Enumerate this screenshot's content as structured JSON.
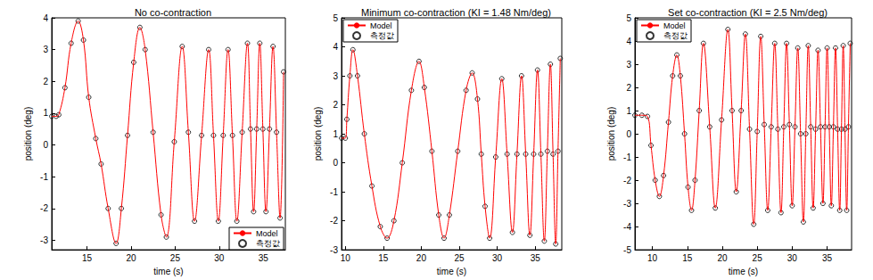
{
  "chart_data": [
    {
      "type": "line",
      "title": "No co-contraction",
      "x_label": "time (s)",
      "y_label": "position (deg)",
      "xlim": [
        11,
        37.5
      ],
      "ylim": [
        -3.3,
        4
      ],
      "xticks": [
        15,
        20,
        25,
        30,
        35
      ],
      "yticks": [
        -3,
        -2,
        -1,
        0,
        1,
        2,
        3,
        4
      ],
      "grid": false,
      "legend": "lower right",
      "x": [
        11.0,
        11.5,
        11.8,
        12.5,
        13.2,
        14.0,
        14.6,
        15.2,
        16.0,
        16.6,
        17.4,
        18.3,
        18.9,
        19.6,
        20.3,
        21.0,
        21.6,
        22.5,
        23.4,
        24.0,
        24.9,
        25.8,
        26.5,
        27.2,
        28.0,
        28.8,
        29.35,
        29.9,
        30.45,
        31.0,
        31.5,
        32.0,
        32.6,
        33.2,
        33.55,
        33.9,
        34.25,
        34.6,
        34.95,
        35.3,
        35.7,
        36.1,
        36.5,
        36.9,
        37.3
      ],
      "series": [
        {
          "name": "Model",
          "type": "line",
          "color": "#ff0000",
          "line_style": "solid",
          "values": [
            0.9,
            0.9,
            0.95,
            1.8,
            3.2,
            3.9,
            3.3,
            1.5,
            0.2,
            -0.6,
            -2.0,
            -3.1,
            -2.0,
            0.3,
            2.6,
            3.7,
            3.0,
            0.4,
            -2.2,
            -2.9,
            0.1,
            3.1,
            0.4,
            -2.4,
            0.3,
            3.0,
            0.3,
            -2.4,
            0.3,
            3.0,
            0.3,
            -2.4,
            0.4,
            3.2,
            0.5,
            -2.1,
            0.5,
            3.2,
            0.5,
            -2.1,
            0.5,
            3.1,
            0.4,
            -2.3,
            2.3
          ]
        },
        {
          "name": "측정값",
          "type": "scatter",
          "color": "#000000",
          "marker": "circle",
          "values": [
            0.9,
            0.9,
            0.95,
            1.8,
            3.2,
            3.9,
            3.3,
            1.5,
            0.2,
            -0.6,
            -2.0,
            -3.1,
            -2.0,
            0.3,
            2.6,
            3.7,
            3.0,
            0.4,
            -2.2,
            -2.9,
            0.1,
            3.1,
            0.4,
            -2.4,
            0.3,
            3.0,
            0.3,
            -2.4,
            0.3,
            3.0,
            0.3,
            -2.4,
            0.4,
            3.2,
            0.5,
            -2.1,
            0.5,
            3.2,
            0.5,
            -2.1,
            0.5,
            3.1,
            0.4,
            -2.3,
            2.3
          ]
        }
      ]
    },
    {
      "type": "line",
      "title": "Minimum co-contraction (KI = 1.48 Nm/deg)",
      "x_label": "time (s)",
      "y_label": "position (deg)",
      "xlim": [
        9.5,
        38.5
      ],
      "ylim": [
        -3,
        5
      ],
      "xticks": [
        10,
        15,
        20,
        25,
        30,
        35
      ],
      "yticks": [
        -3,
        -2,
        -1,
        0,
        1,
        2,
        3,
        4,
        5
      ],
      "grid": false,
      "legend": "upper left",
      "x": [
        9.5,
        10.0,
        10.2,
        10.6,
        11.0,
        11.6,
        12.5,
        13.5,
        14.6,
        15.5,
        16.4,
        17.5,
        18.7,
        19.7,
        20.4,
        21.4,
        22.3,
        23.0,
        23.7,
        24.8,
        25.9,
        26.7,
        27.4,
        27.9,
        28.4,
        29.0,
        29.8,
        30.6,
        31.3,
        32.0,
        32.6,
        33.2,
        33.75,
        34.3,
        34.8,
        35.3,
        35.75,
        36.2,
        36.6,
        37.0,
        37.35,
        37.7,
        38.0,
        38.3
      ],
      "series": [
        {
          "name": "Model",
          "type": "line",
          "color": "#ff0000",
          "line_style": "solid",
          "values": [
            0.85,
            0.85,
            1.5,
            3.0,
            3.9,
            3.0,
            1.0,
            -0.8,
            -2.2,
            -2.6,
            -2.0,
            0.0,
            2.5,
            3.5,
            2.6,
            0.4,
            -1.8,
            -2.6,
            -1.8,
            0.4,
            2.5,
            3.1,
            2.2,
            0.3,
            -1.5,
            -2.6,
            0.2,
            2.9,
            0.3,
            -2.4,
            0.3,
            3.0,
            0.3,
            -2.5,
            0.3,
            3.2,
            0.3,
            -2.7,
            0.4,
            3.4,
            0.3,
            -2.8,
            0.4,
            3.6
          ]
        },
        {
          "name": "측정값",
          "type": "scatter",
          "color": "#000000",
          "marker": "circle",
          "values": [
            0.85,
            0.85,
            1.5,
            3.0,
            3.9,
            3.0,
            1.0,
            -0.8,
            -2.2,
            -2.6,
            -2.0,
            0.0,
            2.5,
            3.5,
            2.6,
            0.4,
            -1.8,
            -2.6,
            -1.8,
            0.4,
            2.5,
            3.1,
            2.2,
            0.3,
            -1.5,
            -2.6,
            0.2,
            2.9,
            0.3,
            -2.4,
            0.3,
            3.0,
            0.3,
            -2.5,
            0.3,
            3.2,
            0.3,
            -2.7,
            0.4,
            3.4,
            0.3,
            -2.8,
            0.4,
            3.6
          ]
        }
      ]
    },
    {
      "type": "line",
      "title": "Set co-contraction (KI = 2.5 Nm/deg)",
      "x_label": "time (s)",
      "y_label": "position (deg)",
      "xlim": [
        7.5,
        38.5
      ],
      "ylim": [
        -5,
        5
      ],
      "xticks": [
        10,
        15,
        20,
        25,
        30,
        35
      ],
      "yticks": [
        -5,
        -4,
        -3,
        -2,
        -1,
        0,
        1,
        2,
        3,
        4,
        5
      ],
      "grid": false,
      "legend": "upper left",
      "x": [
        7.5,
        8.5,
        9.3,
        9.8,
        10.4,
        11.0,
        11.6,
        12.3,
        12.9,
        13.5,
        14.0,
        14.6,
        15.1,
        15.6,
        16.1,
        16.7,
        17.3,
        18.2,
        19.0,
        19.9,
        20.8,
        21.4,
        22.0,
        22.7,
        23.3,
        23.9,
        24.5,
        25.0,
        25.5,
        26.0,
        26.5,
        27.0,
        27.5,
        27.95,
        28.4,
        28.8,
        29.2,
        29.6,
        30.0,
        30.4,
        30.8,
        31.2,
        31.6,
        31.95,
        32.3,
        32.65,
        33.0,
        33.35,
        33.7,
        34.05,
        34.4,
        34.7,
        35.0,
        35.3,
        35.6,
        35.9,
        36.2,
        36.5,
        36.8,
        37.05,
        37.3,
        37.55,
        37.8,
        38.05,
        38.3
      ],
      "series": [
        {
          "name": "Model",
          "type": "line",
          "color": "#ff0000",
          "line_style": "solid",
          "values": [
            0.8,
            0.8,
            0.75,
            -0.5,
            -2.0,
            -2.7,
            -1.8,
            0.5,
            2.5,
            3.4,
            2.5,
            0.0,
            -2.3,
            -3.3,
            -2.0,
            1.0,
            3.9,
            0.3,
            -3.2,
            0.6,
            4.5,
            1.0,
            -2.5,
            1.0,
            4.3,
            0.2,
            -3.9,
            0.1,
            4.2,
            0.4,
            -3.3,
            0.3,
            3.9,
            0.2,
            -3.4,
            0.3,
            3.9,
            0.4,
            -3.1,
            0.3,
            3.7,
            0.0,
            -3.8,
            0.0,
            3.8,
            0.3,
            -3.2,
            0.2,
            3.6,
            0.3,
            -3.0,
            0.3,
            3.7,
            0.3,
            -3.1,
            0.3,
            3.7,
            0.2,
            -3.3,
            0.2,
            3.8,
            0.2,
            -3.3,
            0.3,
            3.9
          ]
        },
        {
          "name": "측정값",
          "type": "scatter",
          "color": "#000000",
          "marker": "circle",
          "values": [
            0.8,
            0.8,
            0.75,
            -0.5,
            -2.0,
            -2.7,
            -1.8,
            0.5,
            2.5,
            3.4,
            2.5,
            0.0,
            -2.3,
            -3.3,
            -2.0,
            1.0,
            3.9,
            0.3,
            -3.2,
            0.6,
            4.5,
            1.0,
            -2.5,
            1.0,
            4.3,
            0.2,
            -3.9,
            0.1,
            4.2,
            0.4,
            -3.3,
            0.3,
            3.9,
            0.2,
            -3.4,
            0.3,
            3.9,
            0.4,
            -3.1,
            0.3,
            3.7,
            0.0,
            -3.8,
            0.0,
            3.8,
            0.3,
            -3.2,
            0.2,
            3.6,
            0.3,
            -3.0,
            0.3,
            3.7,
            0.3,
            -3.1,
            0.3,
            3.7,
            0.2,
            -3.3,
            0.2,
            3.8,
            0.2,
            -3.3,
            0.3,
            3.9
          ]
        }
      ]
    }
  ]
}
